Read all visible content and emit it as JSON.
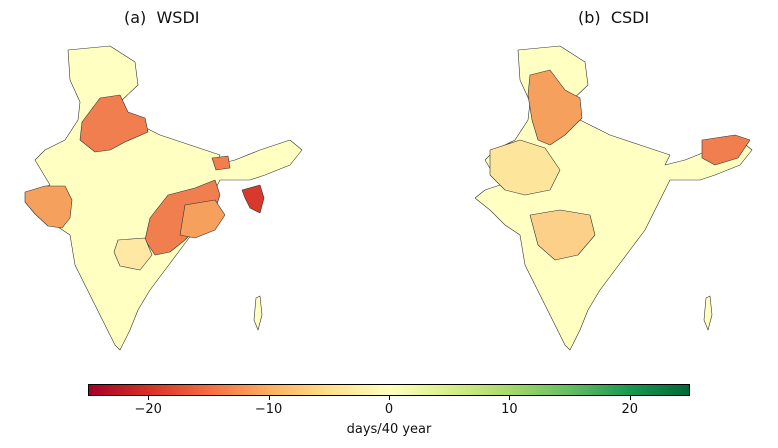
{
  "panels": [
    {
      "title": "(a)  WSDI"
    },
    {
      "title": "(b)  CSDI"
    }
  ],
  "colorbar": {
    "min": -25,
    "max": 25,
    "ticks": [
      {
        "value": -20,
        "label": "−20"
      },
      {
        "value": -10,
        "label": "−10"
      },
      {
        "value": 0,
        "label": "0"
      },
      {
        "value": 10,
        "label": "10"
      },
      {
        "value": 20,
        "label": "20"
      }
    ],
    "label": "days/40 year",
    "colors": [
      "#a50026",
      "#d73027",
      "#f46d43",
      "#fdae61",
      "#fee08b",
      "#ffffbf",
      "#d9ef8b",
      "#a6d96a",
      "#66bd63",
      "#1a9850",
      "#006837"
    ]
  },
  "region_colors": {
    "north": "#f07e4f",
    "north_b": "#f5a05d",
    "west": "#f5a05d",
    "west_b": "#fde59c",
    "maharashtra_b": "#fdd08a",
    "east": "#f07e4f",
    "east_light": "#f5a05d",
    "tripura": "#d73a2c",
    "central": "#fee8a4",
    "northeast_b": "#f07e4f",
    "base": "#ffffc2"
  }
}
